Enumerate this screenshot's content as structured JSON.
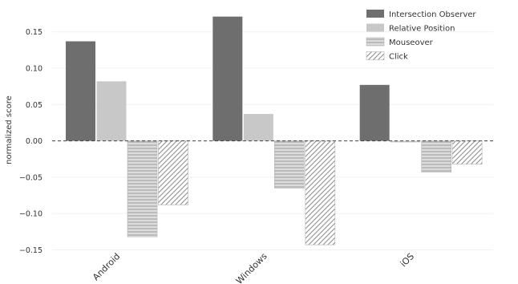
{
  "chart_data": {
    "type": "bar",
    "title": "",
    "xlabel": "",
    "ylabel": "normalized score",
    "ylim": [
      -0.155,
      0.185
    ],
    "yticks": [
      -0.15,
      -0.1,
      -0.05,
      0.0,
      0.05,
      0.1,
      0.15
    ],
    "ytick_labels": [
      "−0.15",
      "−0.10",
      "−0.05",
      "0.00",
      "0.05",
      "0.10",
      "0.15"
    ],
    "categories": [
      "Android",
      "Windows",
      "iOS"
    ],
    "grid": true,
    "legend_position": "top-right",
    "series": [
      {
        "name": "Intersection Observer",
        "values": [
          0.137,
          0.171,
          0.077
        ],
        "color": "#6e6e6e",
        "pattern": "solid"
      },
      {
        "name": "Relative Position",
        "values": [
          0.082,
          0.037,
          -0.002
        ],
        "color": "#c8c8c8",
        "pattern": "solid"
      },
      {
        "name": "Mouseover",
        "values": [
          -0.132,
          -0.065,
          -0.043
        ],
        "color": "#d4d4d4",
        "pattern": "horizontal-lines"
      },
      {
        "name": "Click",
        "values": [
          -0.088,
          -0.143,
          -0.032
        ],
        "color": "#ffffff",
        "pattern": "diagonal-hatch"
      }
    ]
  }
}
